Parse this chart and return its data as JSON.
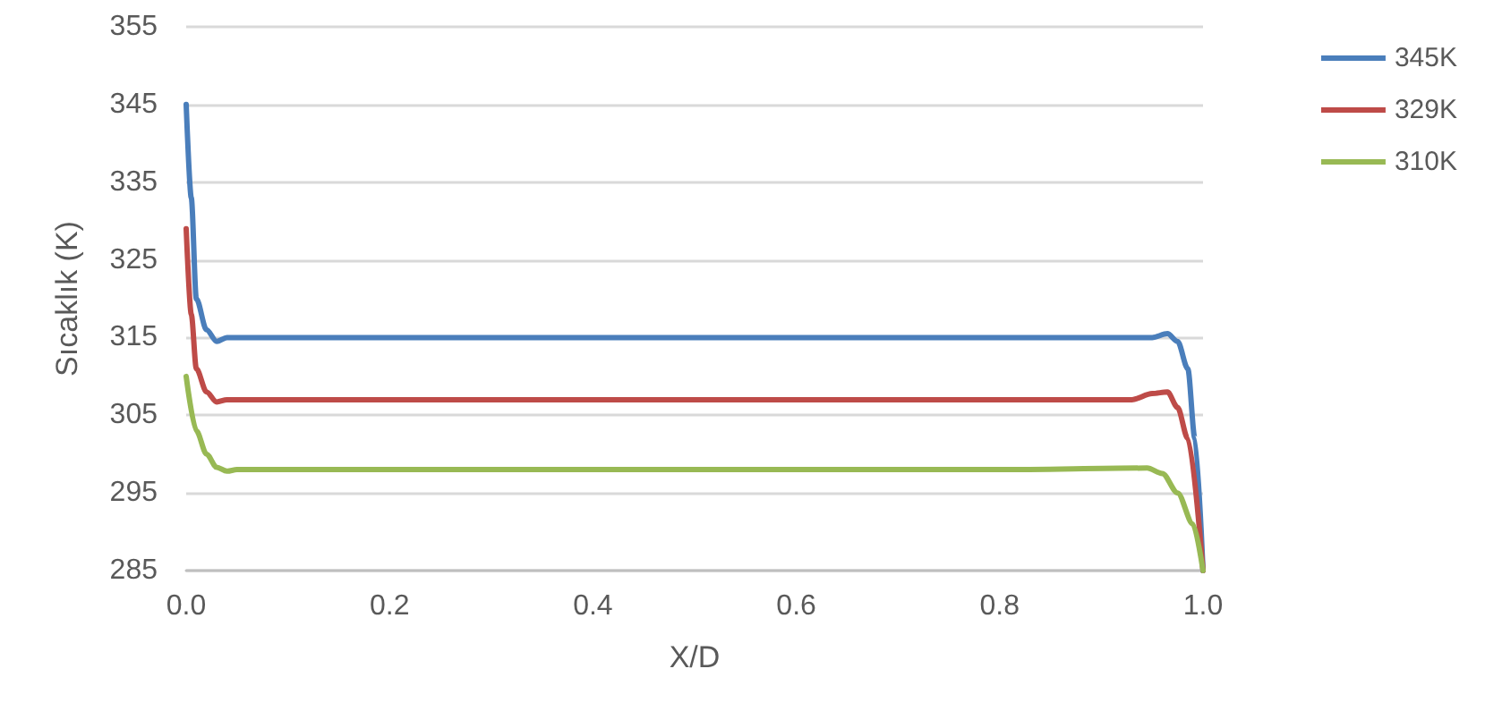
{
  "chart_data": {
    "type": "line",
    "xlabel": "X/D",
    "ylabel": "Sıcaklık (K)",
    "xlim": [
      0,
      1
    ],
    "xticks": [
      {
        "value": 0,
        "label": "0.0"
      },
      {
        "value": 0.2,
        "label": "0.2"
      },
      {
        "value": 0.4,
        "label": "0.4"
      },
      {
        "value": 0.6,
        "label": "0.6"
      },
      {
        "value": 0.8,
        "label": "0.8"
      },
      {
        "value": 1,
        "label": "1.0"
      }
    ],
    "ylim": [
      285,
      355
    ],
    "yticks": [
      285,
      295,
      305,
      315,
      325,
      335,
      345,
      355
    ],
    "grid": "y",
    "legend": "right",
    "marker": "none",
    "line_style": "solid",
    "series": [
      {
        "name": "345K",
        "color": "#4a7ebb",
        "x": [
          0,
          0.005,
          0.01,
          0.02,
          0.03,
          0.04,
          0.05,
          0.2,
          0.5,
          0.8,
          0.95,
          0.965,
          0.975,
          0.985,
          0.992,
          1
        ],
        "values": [
          345,
          333,
          320,
          316,
          314.5,
          315,
          315,
          315,
          315,
          315,
          315,
          315.5,
          314.5,
          311,
          302,
          285
        ]
      },
      {
        "name": "329K",
        "color": "#be4b48",
        "x": [
          0,
          0.005,
          0.01,
          0.02,
          0.03,
          0.04,
          0.05,
          0.2,
          0.5,
          0.8,
          0.93,
          0.95,
          0.965,
          0.975,
          0.985,
          1
        ],
        "values": [
          329,
          318,
          311,
          308,
          306.7,
          307,
          307,
          307,
          307,
          307,
          307,
          307.8,
          308,
          306,
          302,
          285
        ]
      },
      {
        "name": "310K",
        "color": "#98b954",
        "x": [
          0,
          0.01,
          0.02,
          0.03,
          0.04,
          0.05,
          0.2,
          0.5,
          0.8,
          0.945,
          0.96,
          0.975,
          0.99,
          1
        ],
        "values": [
          310,
          303,
          300,
          298.3,
          297.8,
          298,
          298,
          298,
          298,
          298.2,
          297.5,
          295,
          291,
          285
        ]
      }
    ]
  }
}
